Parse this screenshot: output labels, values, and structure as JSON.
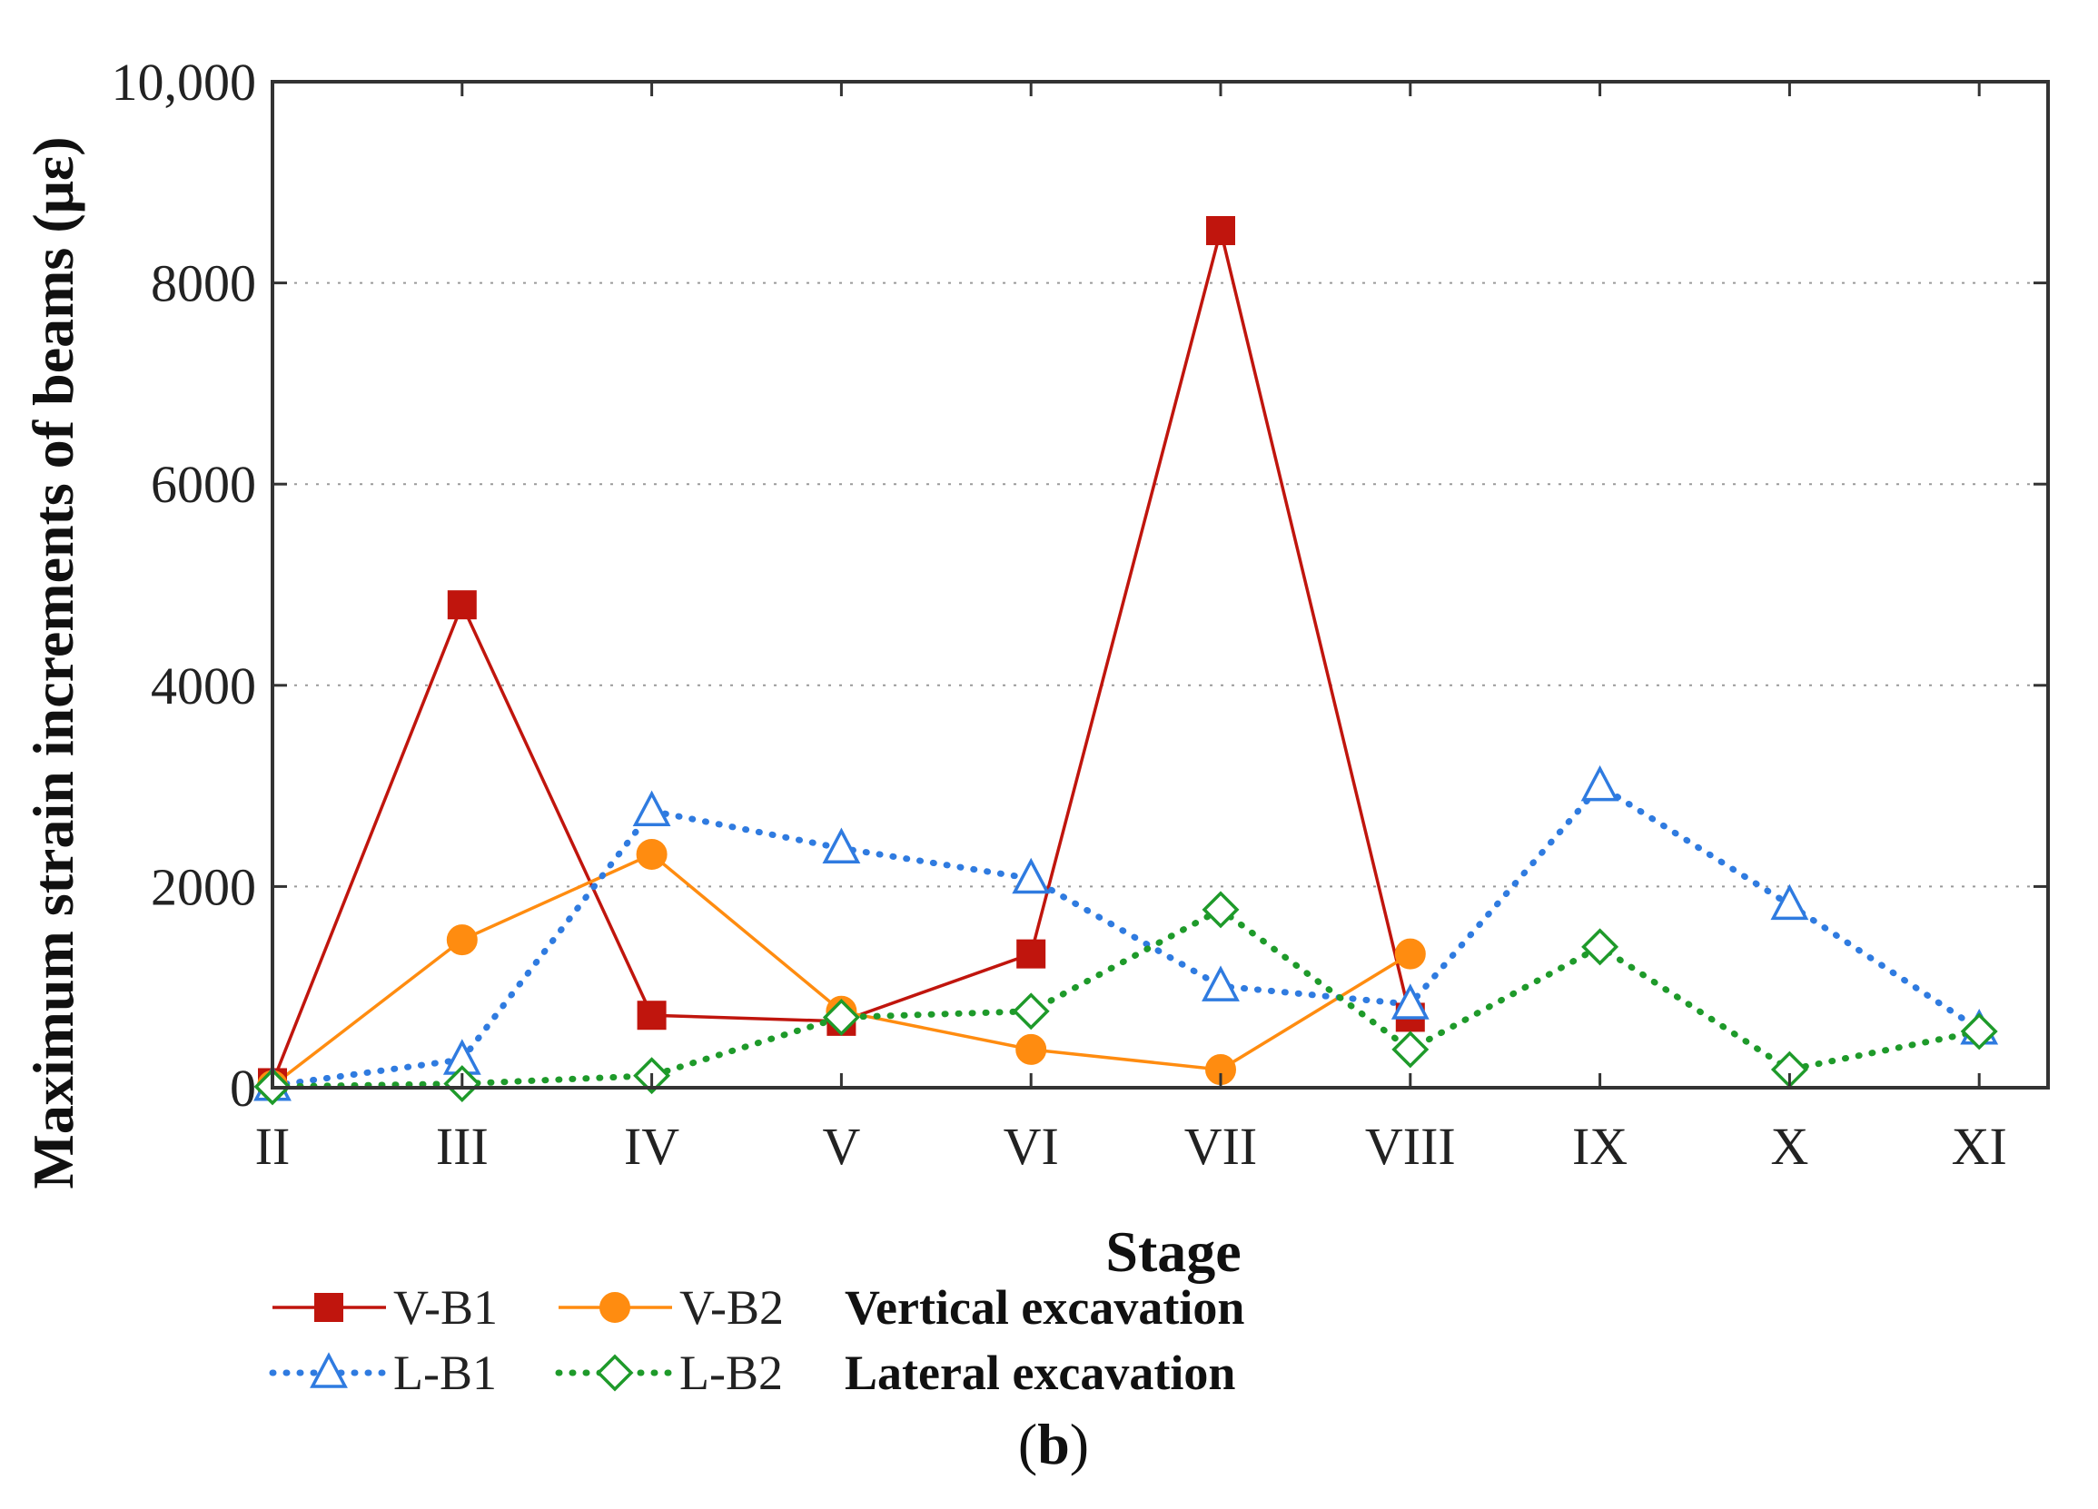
{
  "chart_data": {
    "type": "line",
    "categories": [
      "II",
      "III",
      "IV",
      "V",
      "VI",
      "VII",
      "VIII",
      "IX",
      "X",
      "XI"
    ],
    "xlabel": "Stage",
    "ylabel": "Maximum strain increments of beams (με)",
    "ylim": [
      0,
      10000
    ],
    "yticks": [
      0,
      2000,
      4000,
      6000,
      8000,
      10000
    ],
    "ytick_labels": [
      "0",
      "2000",
      "4000",
      "6000",
      "8000",
      "10,000"
    ],
    "grid": "horizontal dotted",
    "series": [
      {
        "name": "V-B1",
        "group": "Vertical excavation",
        "color": "#c0150d",
        "marker": "square",
        "line": "solid",
        "values": [
          50,
          4800,
          720,
          660,
          1330,
          8520,
          700,
          null,
          null,
          null
        ]
      },
      {
        "name": "V-B2",
        "group": "Vertical excavation",
        "color": "#ff8c10",
        "marker": "circle",
        "line": "solid",
        "values": [
          20,
          1470,
          2320,
          760,
          380,
          180,
          1330,
          null,
          null,
          null
        ]
      },
      {
        "name": "L-B1",
        "group": "Lateral excavation",
        "color": "#2f7be0",
        "marker": "triangle-open",
        "line": "dotted",
        "values": [
          20,
          280,
          2750,
          2380,
          2080,
          1010,
          830,
          3000,
          1820,
          580
        ]
      },
      {
        "name": "L-B2",
        "group": "Lateral excavation",
        "color": "#1e9a2a",
        "marker": "diamond-open",
        "line": "dotted",
        "values": [
          10,
          40,
          120,
          700,
          760,
          1770,
          380,
          1400,
          180,
          560
        ]
      }
    ],
    "legend": {
      "position": "bottom",
      "rows": [
        {
          "group_label": "Vertical excavation",
          "series": [
            "V-B1",
            "V-B2"
          ]
        },
        {
          "group_label": "Lateral excavation",
          "series": [
            "L-B1",
            "L-B2"
          ]
        }
      ]
    },
    "panel_label": {
      "open": "(",
      "letter": "b",
      "close": ")"
    }
  }
}
